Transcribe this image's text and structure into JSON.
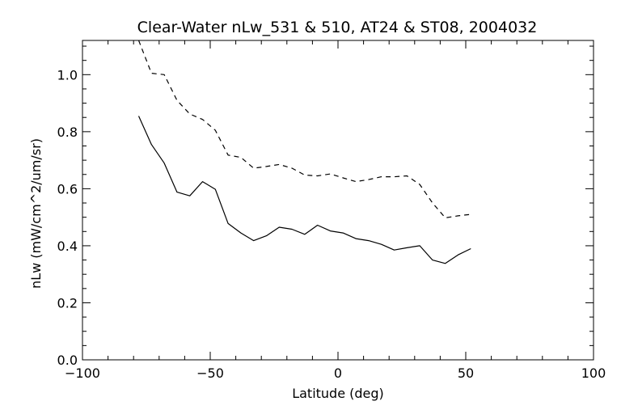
{
  "chart_data": {
    "type": "line",
    "title": "Clear-Water nLw_531 & 510, AT24 & ST08, 2004032",
    "xlabel": "Latitude (deg)",
    "ylabel": "nLw (mW/cm^2/um/sr)",
    "xlim": [
      -100,
      100
    ],
    "ylim": [
      0.0,
      1.12
    ],
    "x_ticks": [
      -100,
      -50,
      0,
      50,
      100
    ],
    "x_tick_labels": [
      "−100",
      "−50",
      "0",
      "50",
      "100"
    ],
    "y_ticks": [
      0.0,
      0.2,
      0.4,
      0.6,
      0.8,
      1.0
    ],
    "y_tick_labels": [
      "0.0",
      "0.2",
      "0.4",
      "0.6",
      "0.8",
      "1.0"
    ],
    "x_minor_step": 10,
    "y_minor_step": 0.05,
    "grid": false,
    "legend": "none",
    "series": [
      {
        "style": "solid",
        "color": "#000000",
        "x": [
          -78,
          -73,
          -68,
          -63,
          -58,
          -53,
          -48,
          -43,
          -38,
          -33,
          -28,
          -23,
          -18,
          -13,
          -8,
          -3,
          2,
          7,
          12,
          17,
          22,
          27,
          32,
          37,
          42,
          47,
          52
        ],
        "y": [
          0.855,
          0.755,
          0.69,
          0.588,
          0.575,
          0.625,
          0.598,
          0.478,
          0.445,
          0.418,
          0.435,
          0.465,
          0.458,
          0.44,
          0.472,
          0.452,
          0.445,
          0.425,
          0.418,
          0.405,
          0.385,
          0.393,
          0.4,
          0.35,
          0.338,
          0.368,
          0.39
        ]
      },
      {
        "style": "dashed",
        "color": "#000000",
        "x": [
          -78,
          -73,
          -68,
          -63,
          -58,
          -53,
          -48,
          -43,
          -38,
          -33,
          -28,
          -23,
          -18,
          -13,
          -8,
          -3,
          2,
          7,
          12,
          17,
          22,
          27,
          32,
          37,
          42,
          47,
          52
        ],
        "y": [
          1.12,
          1.005,
          1.0,
          0.91,
          0.862,
          0.843,
          0.805,
          0.718,
          0.71,
          0.672,
          0.678,
          0.685,
          0.672,
          0.648,
          0.645,
          0.652,
          0.638,
          0.625,
          0.632,
          0.642,
          0.642,
          0.645,
          0.615,
          0.55,
          0.498,
          0.505,
          0.51
        ]
      }
    ]
  }
}
